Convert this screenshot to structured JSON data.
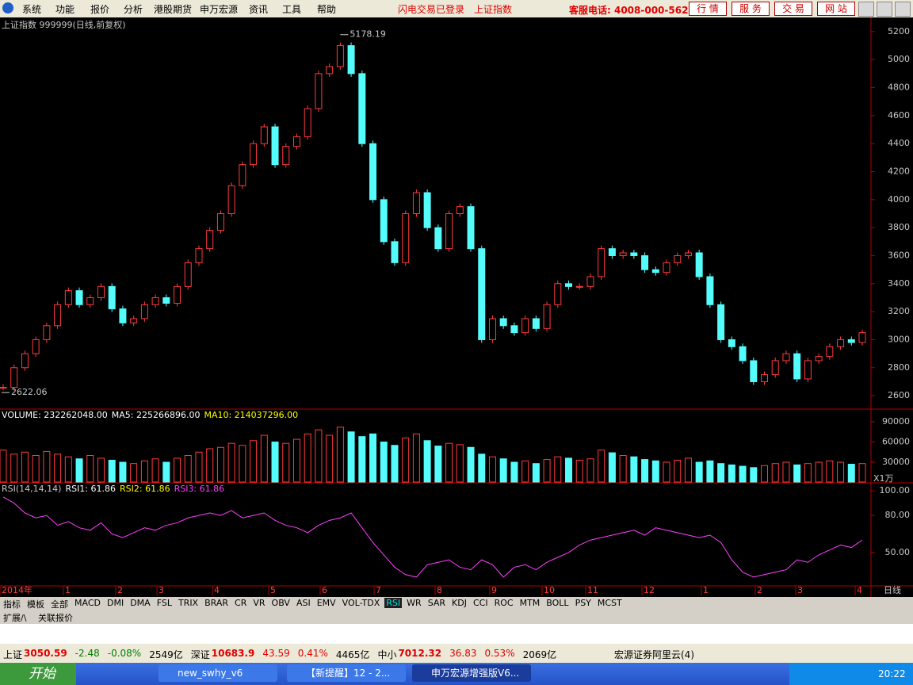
{
  "menu": {
    "items": [
      "系统",
      "功能",
      "报价",
      "分析",
      "港股期货",
      "申万宏源",
      "资讯",
      "工具",
      "帮助"
    ],
    "notices": [
      "闪电交易已登录",
      "上证指数"
    ],
    "hotline": "客服电话: 4008-000-562",
    "buttons": [
      "行 情",
      "服 务",
      "交 易",
      "网 站"
    ]
  },
  "chart_title": "上证指数 999999(日线,前复权)",
  "x_axis": {
    "labels": [
      "2014年",
      "1",
      "2",
      "3",
      "4",
      "5",
      "6",
      "7",
      "8",
      "9",
      "10",
      "11",
      "12",
      "1",
      "2",
      "3",
      "4"
    ],
    "period": "日线"
  },
  "chart_data": [
    {
      "type": "candlestick",
      "up_color": "#ff3c3c",
      "down_color": "#54fcfc",
      "ylim": [
        2510,
        5290
      ],
      "yticks": [
        2600,
        2800,
        3000,
        3200,
        3400,
        3600,
        3800,
        4000,
        4200,
        4400,
        4600,
        4800,
        5000,
        5200
      ],
      "closes": [
        2660,
        2800,
        2900,
        3000,
        3100,
        3250,
        3350,
        3250,
        3300,
        3380,
        3220,
        3120,
        3150,
        3250,
        3300,
        3260,
        3380,
        3550,
        3650,
        3780,
        3900,
        4100,
        4250,
        4400,
        4520,
        4250,
        4380,
        4450,
        4650,
        4900,
        4950,
        5100,
        4900,
        4400,
        4000,
        3700,
        3550,
        3900,
        4050,
        3800,
        3650,
        3900,
        3950,
        3650,
        3000,
        3150,
        3100,
        3050,
        3150,
        3080,
        3250,
        3400,
        3380,
        3380,
        3450,
        3650,
        3600,
        3620,
        3600,
        3500,
        3480,
        3550,
        3600,
        3620,
        3450,
        3250,
        3000,
        2950,
        2850,
        2700,
        2750,
        2850,
        2900,
        2720,
        2850,
        2880,
        2950,
        3000,
        2980,
        3050
      ],
      "high_label": 5178.19,
      "low_label": 2622.06
    },
    {
      "type": "bar",
      "legend": [
        "VOLUME: 232262048.00",
        "MA5: 225266896.00",
        "MA10: 214037296.00"
      ],
      "legend_colors": [
        "#ffffff",
        "#ffffff",
        "#ffff00"
      ],
      "unit": "X1万",
      "ylim": [
        600,
        107600
      ],
      "yticks": [
        30000,
        60000,
        90000
      ],
      "values": [
        48000,
        42000,
        45000,
        40000,
        46000,
        42000,
        38000,
        35000,
        40000,
        36000,
        33000,
        30000,
        28000,
        32000,
        35000,
        30000,
        36000,
        40000,
        45000,
        50000,
        52000,
        58000,
        55000,
        62000,
        70000,
        60000,
        58000,
        64000,
        72000,
        78000,
        70000,
        82000,
        75000,
        68000,
        72000,
        60000,
        55000,
        66000,
        72000,
        62000,
        54000,
        58000,
        56000,
        52000,
        42000,
        38000,
        35000,
        30000,
        32000,
        28000,
        34000,
        38000,
        36000,
        33000,
        35000,
        48000,
        44000,
        40000,
        38000,
        34000,
        32000,
        30000,
        33000,
        36000,
        30000,
        32000,
        28000,
        26000,
        24000,
        22000,
        25000,
        28000,
        30000,
        26000,
        28000,
        30000,
        32000,
        30000,
        27000,
        28000
      ]
    },
    {
      "type": "line",
      "legend": [
        "RSI(14,14,14)",
        "RSI1: 61.86",
        "RSI2: 61.86",
        "RSI3: 61.86"
      ],
      "legend_colors": [
        "#c8c8c8",
        "#ffffff",
        "#ffff00",
        "#ff40ff"
      ],
      "color": "#ff40ff",
      "ylim": [
        23.5,
        105.8
      ],
      "yticks": [
        {
          "value": 50,
          "label": "50.00"
        },
        {
          "value": 80,
          "label": "80.00"
        },
        {
          "value": 100,
          "label": "100.00"
        }
      ],
      "values": [
        95,
        90,
        82,
        78,
        80,
        72,
        75,
        70,
        68,
        74,
        65,
        62,
        66,
        70,
        68,
        72,
        74,
        78,
        80,
        82,
        80,
        84,
        78,
        80,
        82,
        76,
        72,
        70,
        66,
        72,
        76,
        78,
        82,
        70,
        58,
        48,
        38,
        32,
        30,
        40,
        42,
        44,
        38,
        36,
        44,
        40,
        30,
        38,
        40,
        36,
        42,
        46,
        50,
        56,
        60,
        62,
        64,
        66,
        68,
        64,
        70,
        68,
        66,
        64,
        62,
        64,
        58,
        44,
        34,
        30,
        32,
        34,
        36,
        44,
        42,
        48,
        52,
        56,
        54,
        60
      ]
    }
  ],
  "tabs": {
    "items": [
      "指标",
      "模板",
      "全部",
      "MACD",
      "DMI",
      "DMA",
      "FSL",
      "TRIX",
      "BRAR",
      "CR",
      "VR",
      "OBV",
      "ASI",
      "EMV",
      "VOL-TDX",
      "RSI",
      "WR",
      "SAR",
      "KDJ",
      "CCI",
      "ROC",
      "MTM",
      "BOLL",
      "PSY",
      "MCST"
    ],
    "extra": [
      "扩展/\\",
      "关联报价"
    ]
  },
  "status": {
    "items": [
      [
        "上证",
        "3050.59",
        "-2.48",
        "-0.08%",
        "2549亿"
      ],
      [
        "深证",
        "10683.9",
        "43.59",
        "0.41%",
        "4465亿"
      ],
      [
        "中小",
        "7012.32",
        "36.83",
        "0.53%",
        "2069亿"
      ]
    ],
    "broker": "宏源证券阿里云(4)"
  },
  "taskbar": {
    "start": "开始",
    "windows": [
      "new_swhy_v6",
      "【新提醒】12 - 2...",
      "申万宏源增强版V6..."
    ],
    "clock": "20:22"
  }
}
